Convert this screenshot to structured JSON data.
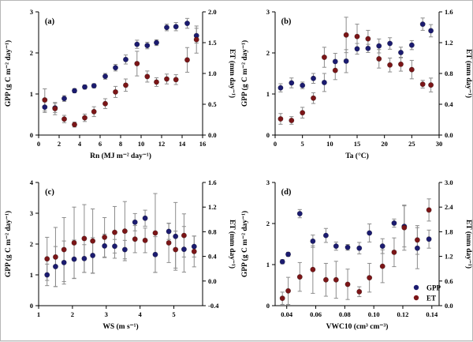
{
  "figure": {
    "background": "#ffffff",
    "colors": {
      "gpp": "#1b1b70",
      "et": "#7b1517",
      "error_bar": "#8c8c8c",
      "axis": "#000000"
    },
    "legend": {
      "position": "inside-panel-d-bottom-right",
      "items": [
        {
          "label": "GPP",
          "color": "#1b1b70"
        },
        {
          "label": "ET",
          "color": "#7b1517"
        }
      ]
    }
  },
  "chart_data": [
    {
      "type": "scatter",
      "panel_label": "(a)",
      "xlabel": "Rn (MJ m⁻² day⁻¹)",
      "ylabel_left": "GPP (g C m⁻² day⁻¹)",
      "ylabel_right": "ET (mm day⁻¹)",
      "xlim": [
        0,
        16
      ],
      "xticks": [
        0,
        2,
        4,
        6,
        8,
        10,
        12,
        14,
        16
      ],
      "xtick_labels": [
        "0",
        "2",
        "4",
        "6",
        "8",
        "10",
        "12",
        "14",
        "16"
      ],
      "ylim_left": [
        0,
        3
      ],
      "yticks_left": [
        0,
        1,
        2,
        3
      ],
      "ytick_labels_left": [
        "0",
        "1",
        "2",
        "3"
      ],
      "ylim_right": [
        0,
        2
      ],
      "yticks_right": [
        0,
        0.5,
        1,
        1.5,
        2
      ],
      "ytick_labels_right": [
        "0.0",
        "0.5",
        "1.0",
        "1.5",
        "2.0"
      ],
      "show_legend": false,
      "series": [
        {
          "name": "GPP",
          "axis": "left",
          "color": "#1b1b70",
          "x": [
            0.6,
            1.6,
            2.5,
            3.5,
            4.5,
            5.4,
            6.5,
            7.5,
            8.5,
            9.6,
            10.6,
            11.5,
            12.5,
            13.4,
            14.5,
            15.4
          ],
          "y": [
            0.68,
            0.66,
            0.89,
            1.08,
            1.17,
            1.2,
            1.43,
            1.64,
            1.84,
            2.21,
            2.18,
            2.25,
            2.62,
            2.64,
            2.72,
            2.42
          ],
          "yerr": [
            0.13,
            0.11,
            0.07,
            0.05,
            0.05,
            0.05,
            0.07,
            0.08,
            0.11,
            0.1,
            0.08,
            0.07,
            0.08,
            0.1,
            0.12,
            0.18
          ]
        },
        {
          "name": "ET",
          "axis": "right",
          "color": "#7b1517",
          "x": [
            0.6,
            1.6,
            2.5,
            3.5,
            4.5,
            5.4,
            6.5,
            7.5,
            8.5,
            9.6,
            10.6,
            11.5,
            12.5,
            13.4,
            14.5,
            15.4
          ],
          "y": [
            0.57,
            0.43,
            0.26,
            0.17,
            0.28,
            0.38,
            0.51,
            0.7,
            0.81,
            1.16,
            0.95,
            0.86,
            0.91,
            0.9,
            1.22,
            1.55
          ],
          "yerr": [
            0.18,
            0.1,
            0.06,
            0.04,
            0.06,
            0.08,
            0.08,
            0.09,
            0.1,
            0.2,
            0.09,
            0.07,
            0.08,
            0.08,
            0.2,
            0.22
          ]
        }
      ]
    },
    {
      "type": "scatter",
      "panel_label": "(b)",
      "xlabel": "Ta (°C)",
      "ylabel_left": "GPP (g C m⁻² day⁻¹)",
      "ylabel_right": "ET (mm day⁻¹)",
      "xlim": [
        0,
        30
      ],
      "xticks": [
        0,
        5,
        10,
        15,
        20,
        25,
        30
      ],
      "xtick_labels": [
        "0",
        "5",
        "10",
        "15",
        "20",
        "25",
        "30"
      ],
      "ylim_left": [
        0,
        3
      ],
      "yticks_left": [
        0,
        1,
        2,
        3
      ],
      "ytick_labels_left": [
        "0",
        "1",
        "2",
        "3"
      ],
      "ylim_right": [
        0,
        1.6
      ],
      "yticks_right": [
        0,
        0.4,
        0.8,
        1.2,
        1.6
      ],
      "ytick_labels_right": [
        "0.0",
        "0.4",
        "0.8",
        "1.2",
        "1.6"
      ],
      "show_legend": false,
      "series": [
        {
          "name": "GPP",
          "axis": "left",
          "color": "#1b1b70",
          "x": [
            1,
            3,
            5,
            7,
            9,
            11,
            13,
            15,
            17,
            19,
            21,
            23,
            25,
            27,
            28.5
          ],
          "y": [
            1.15,
            1.27,
            1.21,
            1.38,
            1.28,
            1.79,
            1.8,
            2.1,
            2.11,
            2.17,
            2.23,
            2.01,
            2.19,
            2.7,
            2.54
          ],
          "yerr": [
            0.1,
            0.12,
            0.08,
            0.12,
            0.22,
            0.2,
            0.28,
            0.13,
            0.1,
            0.17,
            0.14,
            0.13,
            0.11,
            0.15,
            0.15
          ]
        },
        {
          "name": "ET",
          "axis": "right",
          "color": "#7b1517",
          "x": [
            1,
            3,
            5,
            7,
            9,
            11,
            13,
            15,
            17,
            19,
            21,
            23,
            25,
            27,
            28.5
          ],
          "y": [
            0.21,
            0.19,
            0.29,
            0.48,
            1.01,
            0.84,
            1.3,
            1.28,
            1.25,
            0.99,
            0.91,
            0.92,
            0.85,
            0.66,
            0.65
          ],
          "yerr": [
            0.07,
            0.05,
            0.07,
            0.07,
            0.13,
            0.12,
            0.23,
            0.16,
            0.11,
            0.12,
            0.09,
            0.09,
            0.12,
            0.05,
            0.09
          ]
        }
      ]
    },
    {
      "type": "scatter",
      "panel_label": "(c)",
      "xlabel": "WS (m s⁻¹)",
      "ylabel_left": "GPP (g C m⁻² day⁻¹)",
      "ylabel_right": "ET (mm day⁻¹)",
      "xlim": [
        1,
        5.85
      ],
      "xticks": [
        1,
        2,
        3,
        4,
        5
      ],
      "xtick_labels": [
        "1",
        "2",
        "3",
        "4",
        "5"
      ],
      "ylim_left": [
        0,
        4
      ],
      "yticks_left": [
        0,
        1,
        2,
        3,
        4
      ],
      "ytick_labels_left": [
        "0",
        "1",
        "2",
        "3",
        "4"
      ],
      "ylim_right": [
        -0.4,
        1.6
      ],
      "yticks_right": [
        -0.4,
        0,
        0.4,
        0.8,
        1.2,
        1.6
      ],
      "ytick_labels_right": [
        "-0.4",
        "0.0",
        "0.4",
        "0.8",
        "1.2",
        "1.6"
      ],
      "show_legend": false,
      "series": [
        {
          "name": "GPP",
          "axis": "left",
          "color": "#1b1b70",
          "x": [
            1.25,
            1.5,
            1.75,
            2.05,
            2.35,
            2.6,
            2.95,
            3.25,
            3.55,
            3.85,
            4.15,
            4.45,
            4.85,
            5.05,
            5.3,
            5.6
          ],
          "y": [
            1.0,
            1.27,
            1.4,
            1.51,
            1.53,
            1.63,
            1.94,
            1.93,
            1.82,
            2.71,
            2.84,
            1.66,
            2.41,
            2.25,
            1.83,
            1.92
          ],
          "yerr": [
            0.35,
            0.65,
            0.7,
            0.62,
            0.45,
            0.58,
            0.38,
            0.22,
            0.3,
            0.28,
            0.26,
            0.58,
            0.26,
            1.1,
            0.74,
            0.34
          ]
        },
        {
          "name": "ET",
          "axis": "right",
          "color": "#7b1517",
          "x": [
            1.25,
            1.5,
            1.75,
            2.05,
            2.35,
            2.6,
            2.95,
            3.25,
            3.55,
            3.85,
            4.15,
            4.45,
            4.85,
            5.05,
            5.3,
            5.6
          ],
          "y": [
            0.36,
            0.39,
            0.51,
            0.62,
            0.69,
            0.65,
            0.71,
            0.79,
            0.81,
            0.68,
            0.66,
            0.78,
            0.62,
            0.51,
            0.74,
            0.48
          ],
          "yerr": [
            0.35,
            0.48,
            0.52,
            0.58,
            0.55,
            0.52,
            0.32,
            0.42,
            0.48,
            0.22,
            0.2,
            0.64,
            0.32,
            0.3,
            0.35,
            0.25
          ]
        }
      ]
    },
    {
      "type": "scatter",
      "panel_label": "(d)",
      "xlabel": "VWC10 (cm³ cm⁻³)",
      "ylabel_left": "GPP (g C m⁻² day⁻¹)",
      "ylabel_right": "ET (mm day⁻¹)",
      "xlim": [
        0.032,
        0.145
      ],
      "xticks": [
        0.04,
        0.06,
        0.08,
        0.1,
        0.12,
        0.14
      ],
      "xtick_labels": [
        "0.04",
        "0.06",
        "0.08",
        "0.10",
        "0.12",
        "0.14"
      ],
      "ylim_left": [
        0,
        3
      ],
      "yticks_left": [
        0,
        1,
        2,
        3
      ],
      "ytick_labels_left": [
        "0",
        "1",
        "2",
        "3"
      ],
      "ylim_right": [
        0,
        3
      ],
      "yticks_right": [
        0,
        0.6,
        1.2,
        1.8,
        2.4,
        3
      ],
      "ytick_labels_right": [
        "0.0",
        "0.6",
        "1.2",
        "1.8",
        "2.4",
        "3.0"
      ],
      "show_legend": true,
      "series": [
        {
          "name": "GPP",
          "axis": "left",
          "color": "#1b1b70",
          "x": [
            0.037,
            0.041,
            0.049,
            0.058,
            0.067,
            0.074,
            0.082,
            0.09,
            0.097,
            0.106,
            0.114,
            0.121,
            0.13,
            0.138
          ],
          "y": [
            1.07,
            1.25,
            2.24,
            1.57,
            1.71,
            1.45,
            1.42,
            1.4,
            1.77,
            1.45,
            2.01,
            1.93,
            1.4,
            1.62
          ],
          "yerr": [
            0.05,
            0.05,
            0.1,
            0.15,
            0.17,
            0.1,
            0.07,
            0.14,
            0.22,
            0.18,
            0.1,
            0.5,
            0.5,
            0.22
          ]
        },
        {
          "name": "ET",
          "axis": "right",
          "color": "#7b1517",
          "x": [
            0.037,
            0.041,
            0.049,
            0.058,
            0.067,
            0.074,
            0.082,
            0.09,
            0.097,
            0.106,
            0.114,
            0.121,
            0.13,
            0.138
          ],
          "y": [
            0.18,
            0.36,
            0.7,
            0.88,
            0.63,
            0.63,
            0.52,
            0.34,
            0.68,
            0.96,
            1.3,
            1.9,
            1.6,
            2.33
          ],
          "yerr": [
            0.15,
            0.33,
            0.35,
            0.58,
            0.4,
            0.45,
            0.37,
            0.12,
            0.35,
            0.4,
            0.35,
            0.55,
            0.35,
            0.27
          ]
        }
      ]
    }
  ]
}
